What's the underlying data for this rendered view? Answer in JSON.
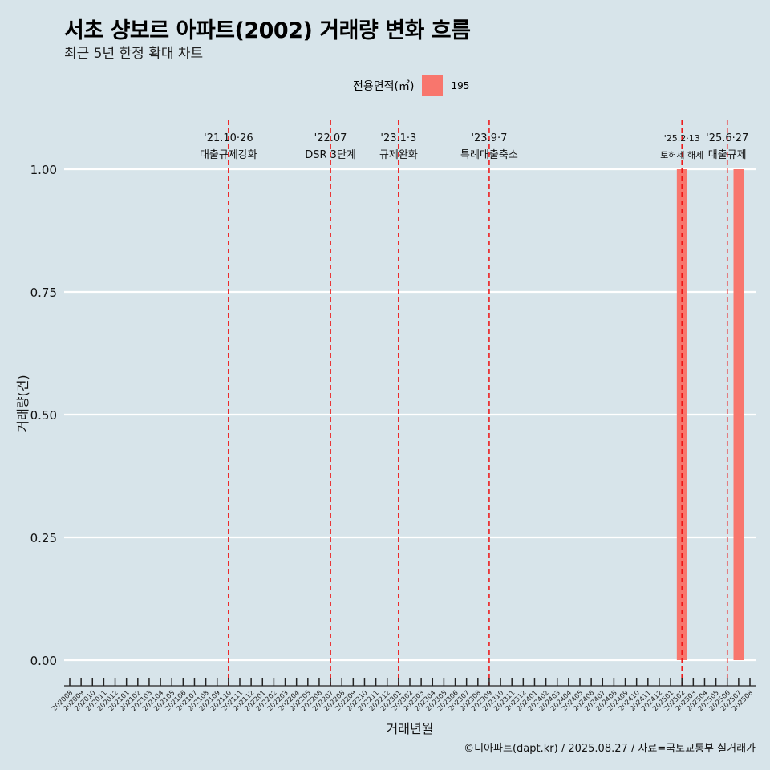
{
  "title": "서초 샹보르 아파트(2002) 거래량 변화 흐름",
  "subtitle": "최근 5년 한정 확대 차트",
  "legend": {
    "title": "전용면적(㎡)",
    "label": "195",
    "color": "#f8766d"
  },
  "caption": "©디아파트(dapt.kr) / 2025.08.27 / 자료=국토교통부 실거래가",
  "chart_data": {
    "type": "bar",
    "title": "서초 샹보르 아파트(2002) 거래량 변화 흐름",
    "xlabel": "거래년월",
    "ylabel": "거래량(건)",
    "ylim": [
      0,
      1.05
    ],
    "yticks": [
      "0.00",
      "0.25",
      "0.50",
      "0.75",
      "1.00"
    ],
    "yticks_values": [
      0,
      0.25,
      0.5,
      0.75,
      1.0
    ],
    "categories": [
      "202008",
      "202009",
      "202010",
      "202011",
      "202012",
      "202101",
      "202102",
      "202103",
      "202104",
      "202105",
      "202106",
      "202107",
      "202108",
      "202109",
      "202110",
      "202111",
      "202112",
      "202201",
      "202202",
      "202203",
      "202204",
      "202205",
      "202206",
      "202207",
      "202208",
      "202209",
      "202210",
      "202211",
      "202212",
      "202301",
      "202302",
      "202303",
      "202304",
      "202305",
      "202306",
      "202307",
      "202308",
      "202309",
      "202310",
      "202311",
      "202312",
      "202401",
      "202402",
      "202403",
      "202404",
      "202405",
      "202406",
      "202407",
      "202408",
      "202409",
      "202410",
      "202411",
      "202412",
      "202501",
      "202502",
      "202503",
      "202504",
      "202505",
      "202506",
      "202507",
      "202508"
    ],
    "series": [
      {
        "name": "195",
        "color": "#f8766d",
        "points": [
          {
            "x": "202502",
            "value": 1
          },
          {
            "x": "202507",
            "value": 1
          }
        ]
      }
    ],
    "annotations": [
      {
        "x": "202110",
        "date": "'21.10·26",
        "text": "대출규제강화"
      },
      {
        "x": "202207",
        "date": "'22.07",
        "text": "DSR 3단계"
      },
      {
        "x": "202301",
        "date": "'23.1·3",
        "text": "규제완화"
      },
      {
        "x": "202309",
        "date": "'23.9·7",
        "text": "특례대출축소"
      },
      {
        "x": "202502",
        "date": "'25.2·13",
        "text": "토허제 해제"
      },
      {
        "x": "202506",
        "date": "'25.6·27",
        "text": "대출규제"
      }
    ]
  }
}
